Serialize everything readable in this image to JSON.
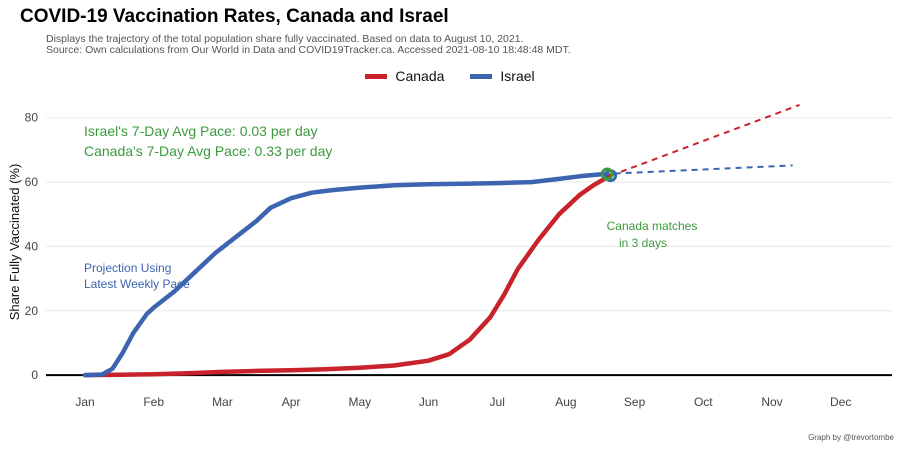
{
  "title": "COVID-19 Vaccination Rates, Canada and Israel",
  "subtitle_lines": [
    "Displays the trajectory of the total population share fully vaccinated. Based on data to August 10, 2021.",
    "Source: Own calculations from Our World in Data and COVID19Tracker.ca. Accessed 2021-08-10 18:48:48 MDT."
  ],
  "credit": "Graph by @trevortombe",
  "colors": {
    "canada": "#c8222a",
    "israel": "#3d64b0",
    "annotation": "#3c9a3c",
    "projection_label": "#3d64b0"
  },
  "annotations": {
    "israel_pace": "Israel's 7-Day Avg Pace: 0.03 per day",
    "canada_pace": "Canada's 7-Day Avg Pace: 0.33 per day",
    "projection_line1": "Projection Using",
    "projection_line2": "Latest Weekly Pace",
    "match_line1": "Canada matches",
    "match_line2": "in 3 days"
  },
  "chart_data": {
    "type": "line",
    "title": "COVID-19 Vaccination Rates, Canada and Israel",
    "ylabel": "Share Fully Vaccinated (%)",
    "xlabel": "",
    "x_ticks": [
      "Jan",
      "Feb",
      "Mar",
      "Apr",
      "May",
      "Jun",
      "Jul",
      "Aug",
      "Sep",
      "Oct",
      "Nov",
      "Dec"
    ],
    "y_ticks": [
      0,
      20,
      40,
      60,
      80
    ],
    "ylim": [
      -4,
      88
    ],
    "xlim_months": [
      0.4,
      11.7
    ],
    "grid": true,
    "legend_position": "top",
    "series": [
      {
        "name": "Canada",
        "color": "#c8222a",
        "points": [
          [
            0,
            0
          ],
          [
            0.5,
            0.1
          ],
          [
            1,
            0.3
          ],
          [
            1.5,
            0.6
          ],
          [
            2,
            1.0
          ],
          [
            2.5,
            1.3
          ],
          [
            3,
            1.5
          ],
          [
            3.5,
            1.8
          ],
          [
            4,
            2.3
          ],
          [
            4.5,
            3.0
          ],
          [
            5,
            4.5
          ],
          [
            5.3,
            6.5
          ],
          [
            5.6,
            11
          ],
          [
            5.9,
            18
          ],
          [
            6.1,
            25
          ],
          [
            6.3,
            33
          ],
          [
            6.6,
            42
          ],
          [
            6.9,
            50
          ],
          [
            7.2,
            56
          ],
          [
            7.4,
            59
          ],
          [
            7.6,
            61.5
          ],
          [
            7.65,
            62
          ]
        ]
      },
      {
        "name": "Israel",
        "color": "#3d64b0",
        "points": [
          [
            0,
            0
          ],
          [
            0.25,
            0.2
          ],
          [
            0.4,
            2
          ],
          [
            0.55,
            7
          ],
          [
            0.7,
            13
          ],
          [
            0.9,
            19
          ],
          [
            1,
            21
          ],
          [
            1.3,
            26
          ],
          [
            1.6,
            32
          ],
          [
            1.9,
            38
          ],
          [
            2.2,
            43
          ],
          [
            2.5,
            48
          ],
          [
            2.7,
            52
          ],
          [
            3,
            55
          ],
          [
            3.3,
            56.7
          ],
          [
            3.6,
            57.5
          ],
          [
            4,
            58.3
          ],
          [
            4.5,
            59
          ],
          [
            5,
            59.3
          ],
          [
            5.5,
            59.5
          ],
          [
            6,
            59.7
          ],
          [
            6.5,
            60
          ],
          [
            6.9,
            61
          ],
          [
            7.2,
            61.8
          ],
          [
            7.4,
            62.2
          ],
          [
            7.55,
            62.5
          ]
        ]
      },
      {
        "name": "Canada projection",
        "color": "#c8222a",
        "dashed": true,
        "points": [
          [
            7.65,
            62
          ],
          [
            10.4,
            84
          ]
        ]
      },
      {
        "name": "Israel projection",
        "color": "#3d64b0",
        "dashed": true,
        "points": [
          [
            7.55,
            62.5
          ],
          [
            10.3,
            65.2
          ]
        ]
      }
    ],
    "markers": [
      {
        "series": "Canada",
        "x": 7.65,
        "y": 62,
        "color": "#3d64b0"
      },
      {
        "series": "Israel",
        "x": 7.6,
        "y": 62.5,
        "color": "#3c9a3c"
      }
    ]
  }
}
